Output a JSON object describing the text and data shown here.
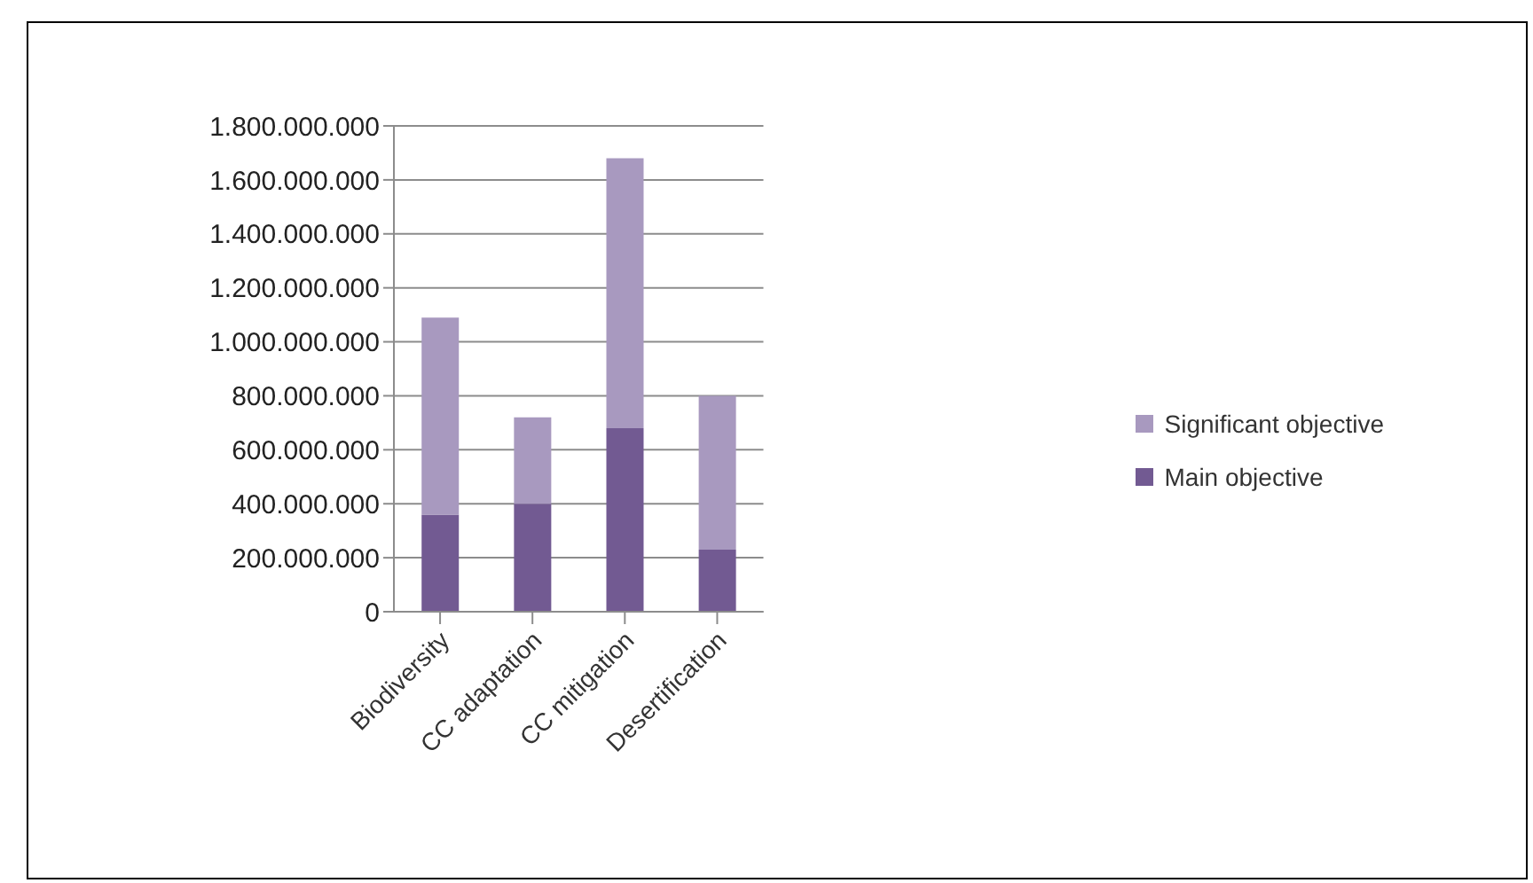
{
  "chart_data": {
    "type": "bar",
    "stacked": true,
    "categories": [
      "Biodiversity",
      "CC adaptation",
      "CC mitigation",
      "Desertification"
    ],
    "series": [
      {
        "name": "Main objective",
        "color": "#725a92",
        "values": [
          360000000,
          400000000,
          680000000,
          230000000
        ]
      },
      {
        "name": "Significant objective",
        "color": "#a899bf",
        "values": [
          730000000,
          320000000,
          1000000000,
          570000000
        ]
      }
    ],
    "ylim": [
      0,
      1800000000
    ],
    "yticks": [
      0,
      {
        "value": 200000000,
        "label": "200.000.000"
      },
      {
        "value": 400000000,
        "label": "400.000.000"
      },
      {
        "value": 600000000,
        "label": "600.000.000"
      },
      {
        "value": 800000000,
        "label": "800.000.000"
      },
      {
        "value": 1000000000,
        "label": "1.000.000.000"
      },
      {
        "value": 1200000000,
        "label": "1.200.000.000"
      },
      {
        "value": 1400000000,
        "label": "1.400.000.000"
      },
      {
        "value": 1600000000,
        "label": "1.600.000.000"
      },
      {
        "value": 1800000000,
        "label": "1.800.000.000"
      }
    ],
    "grid": "y",
    "legend": "right"
  }
}
